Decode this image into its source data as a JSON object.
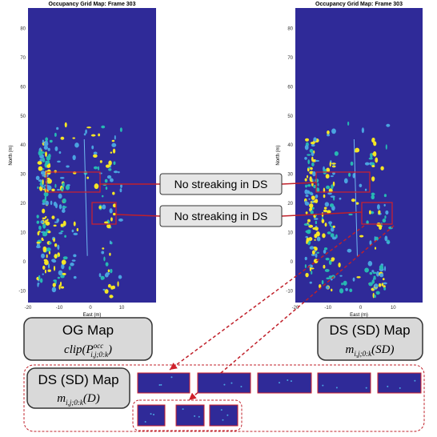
{
  "left_map": {
    "title": "Occupancy Grid Map: Frame 303",
    "x_label": "East (m)",
    "y_label": "North (m)",
    "xticks": [
      -20,
      -10,
      0,
      10
    ],
    "yticks": [
      80,
      70,
      60,
      50,
      40,
      30,
      20,
      10,
      0,
      -10
    ]
  },
  "right_map": {
    "title": "Occupancy Grid Map: Frame 303",
    "x_label": "East (m)",
    "y_label": "North (m)",
    "xticks": [
      -20,
      -10,
      0,
      10
    ],
    "yticks": [
      80,
      70,
      60,
      50,
      40,
      30,
      20,
      10,
      0,
      -10
    ]
  },
  "callouts": [
    "No streaking in DS",
    "No streaking in DS"
  ],
  "og_box": {
    "title": "OG Map",
    "fn": "clip(",
    "sym": "P",
    "sup": "occ",
    "sub": "i,j;0:k",
    "close": ")"
  },
  "ds_sd_box": {
    "title": "DS (SD) Map",
    "sym": "m",
    "sub": "i,j;0:k",
    "arg": "(SD)"
  },
  "ds_d_box": {
    "title": "DS (SD) Map",
    "sym": "m",
    "sub": "i,j;0:k",
    "arg": "(D)"
  }
}
